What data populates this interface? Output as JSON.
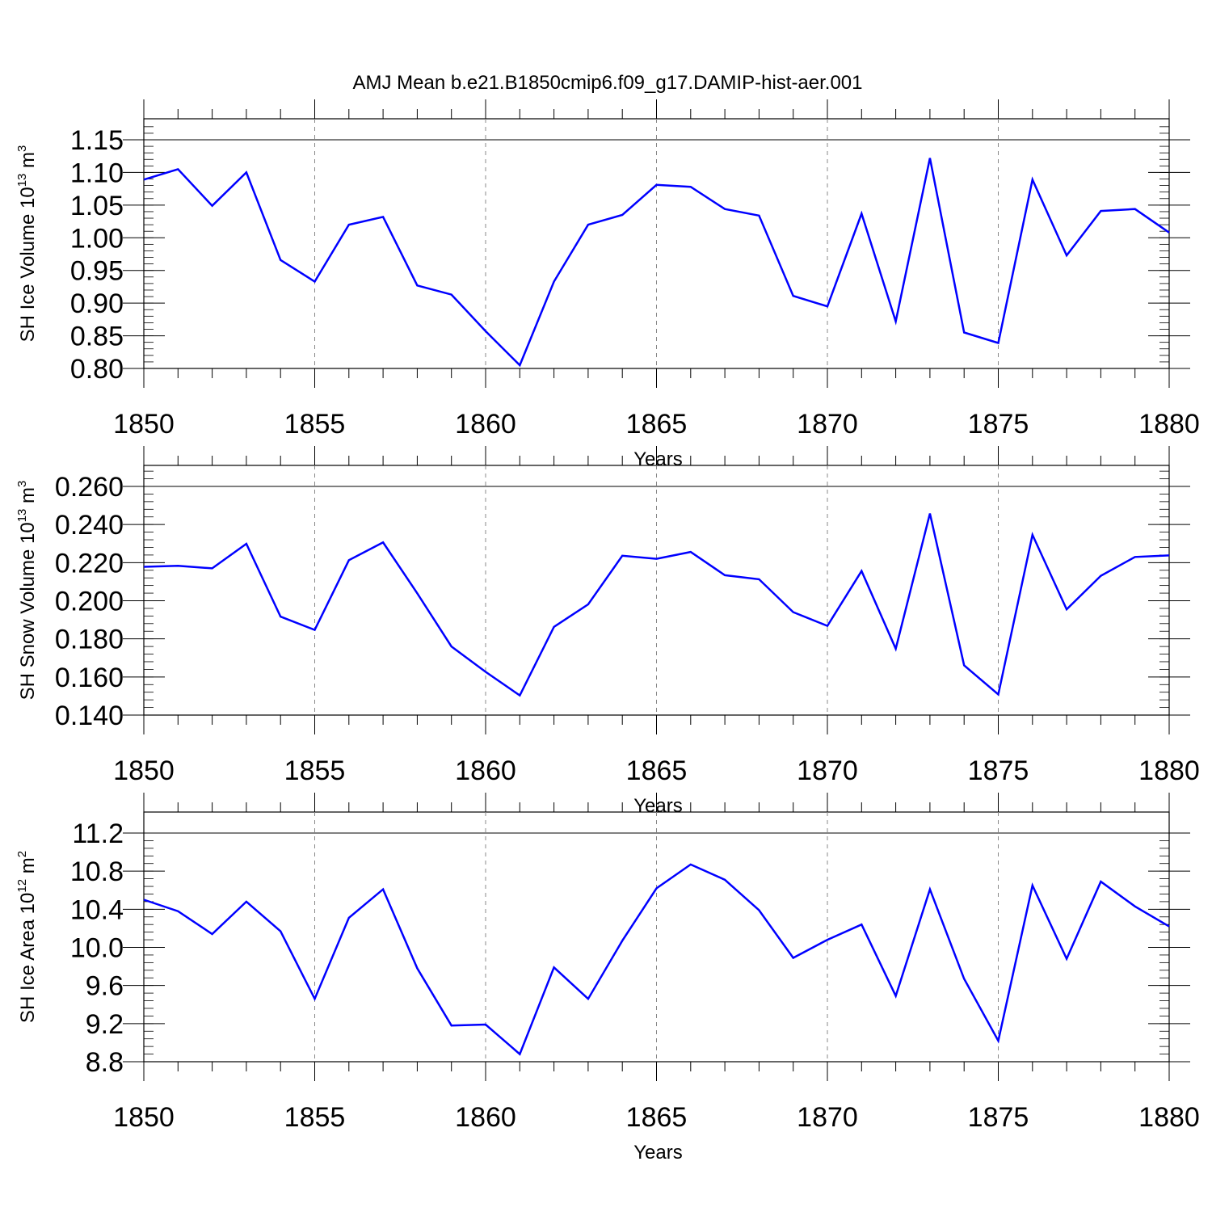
{
  "title": "AMJ Mean b.e21.B1850cmip6.f09_g17.DAMIP-hist-aer.001",
  "line_color": "#0000ff",
  "grid_color": "#888888",
  "chart_data": [
    {
      "type": "line",
      "ylabel_main": "SH Ice Volume 10",
      "ylabel_exp": "13",
      "ylabel_unit": " m",
      "ylabel_unit_exp": "3",
      "xlabel": "Years",
      "xlim": [
        1850,
        1880
      ],
      "ylim": [
        0.8,
        1.165
      ],
      "x_ticks": [
        "1850",
        "1855",
        "1860",
        "1865",
        "1870",
        "1875",
        "1880"
      ],
      "y_ticks": [
        "0.80",
        "0.85",
        "0.90",
        "0.95",
        "1.00",
        "1.05",
        "1.10",
        "1.15"
      ],
      "y_minor_step": 0.01,
      "grid": "vertical dashed at major x ticks",
      "x": [
        1850,
        1851,
        1852,
        1853,
        1854,
        1855,
        1856,
        1857,
        1858,
        1859,
        1860,
        1861,
        1862,
        1863,
        1864,
        1865,
        1866,
        1867,
        1868,
        1869,
        1870,
        1871,
        1872,
        1873,
        1874,
        1875,
        1876,
        1877,
        1878,
        1879,
        1880
      ],
      "values": [
        1.089,
        1.105,
        1.049,
        1.1,
        0.966,
        0.933,
        1.02,
        1.032,
        0.927,
        0.913,
        0.857,
        0.805,
        0.933,
        1.02,
        1.035,
        1.081,
        1.078,
        1.044,
        1.034,
        0.911,
        0.895,
        1.037,
        0.872,
        1.122,
        0.855,
        0.839,
        1.089,
        0.973,
        1.041,
        1.044,
        1.008
      ]
    },
    {
      "type": "line",
      "ylabel_main": "SH Snow Volume 10",
      "ylabel_exp": "13",
      "ylabel_unit": " m",
      "ylabel_unit_exp": "3",
      "xlabel": "Years",
      "xlim": [
        1850,
        1880
      ],
      "ylim": [
        0.14,
        0.2665
      ],
      "x_ticks": [
        "1850",
        "1855",
        "1860",
        "1865",
        "1870",
        "1875",
        "1880"
      ],
      "y_ticks": [
        "0.140",
        "0.160",
        "0.180",
        "0.200",
        "0.220",
        "0.240",
        "0.260"
      ],
      "y_minor_step": 0.004,
      "grid": "vertical dashed at major x ticks",
      "x": [
        1850,
        1851,
        1852,
        1853,
        1854,
        1855,
        1856,
        1857,
        1858,
        1859,
        1860,
        1861,
        1862,
        1863,
        1864,
        1865,
        1866,
        1867,
        1868,
        1869,
        1870,
        1871,
        1872,
        1873,
        1874,
        1875,
        1876,
        1877,
        1878,
        1879,
        1880
      ],
      "values": [
        0.2178,
        0.2183,
        0.217,
        0.2299,
        0.1917,
        0.1847,
        0.2213,
        0.2306,
        0.2039,
        0.176,
        0.1627,
        0.1503,
        0.1863,
        0.1981,
        0.2236,
        0.222,
        0.2256,
        0.2134,
        0.2113,
        0.194,
        0.1868,
        0.2156,
        0.1748,
        0.2458,
        0.1661,
        0.1508,
        0.2346,
        0.1955,
        0.2131,
        0.223,
        0.2238
      ]
    },
    {
      "type": "line",
      "ylabel_main": "SH Ice Area 10",
      "ylabel_exp": "12",
      "ylabel_unit": " m",
      "ylabel_unit_exp": "2",
      "xlabel": "Years",
      "xlim": [
        1850,
        1880
      ],
      "ylim": [
        8.8,
        11.2
      ],
      "x_ticks": [
        "1850",
        "1855",
        "1860",
        "1865",
        "1870",
        "1875",
        "1880"
      ],
      "y_ticks": [
        "8.8",
        "9.2",
        "9.6",
        "10.0",
        "10.4",
        "10.8",
        "11.2"
      ],
      "y_minor_step": 0.08,
      "grid": "vertical dashed at major x ticks",
      "x": [
        1850,
        1851,
        1852,
        1853,
        1854,
        1855,
        1856,
        1857,
        1858,
        1859,
        1860,
        1861,
        1862,
        1863,
        1864,
        1865,
        1866,
        1867,
        1868,
        1869,
        1870,
        1871,
        1872,
        1873,
        1874,
        1875,
        1876,
        1877,
        1878,
        1879,
        1880
      ],
      "values": [
        10.5,
        10.38,
        10.14,
        10.48,
        10.17,
        9.46,
        10.31,
        10.61,
        9.78,
        9.18,
        9.19,
        8.88,
        9.79,
        9.46,
        10.07,
        10.62,
        10.87,
        10.71,
        10.39,
        9.89,
        10.08,
        10.24,
        9.49,
        10.61,
        9.67,
        9.02,
        10.65,
        9.88,
        10.69,
        10.43,
        10.22
      ]
    }
  ]
}
